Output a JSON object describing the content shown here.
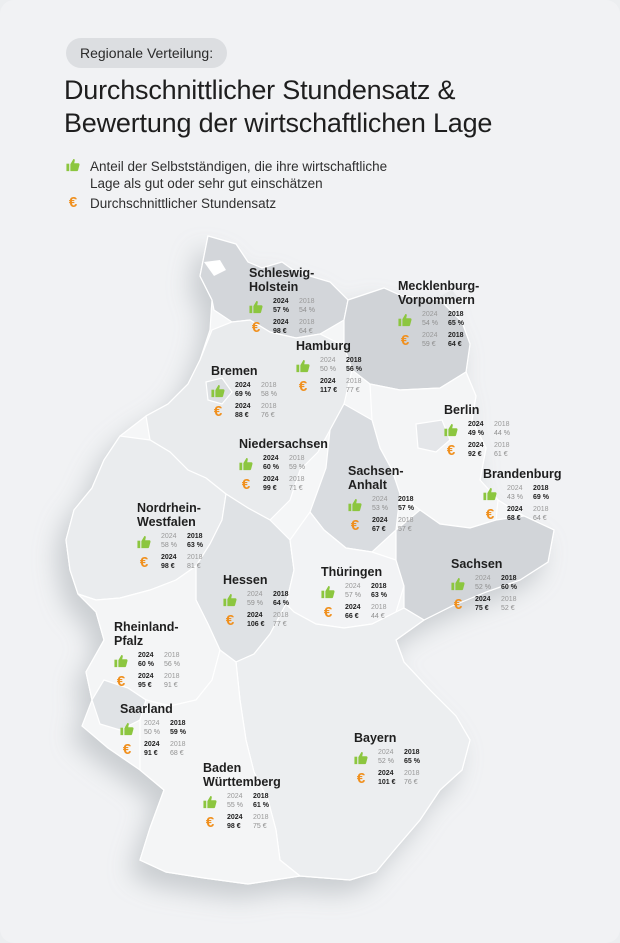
{
  "header": {
    "pill": "Regionale Verteilung:",
    "title_line1": "Durchschnittlicher Stundensatz &",
    "title_line2": "Bewertung der wirtschaftlichen Lage"
  },
  "legend": {
    "thumb_text": "Anteil der Selbstständigen, die ihre wirtschaftliche Lage als gut oder sehr gut einschätzen",
    "euro_text": "Durchschnittlicher Stundensatz",
    "euro_symbol": "€"
  },
  "colors": {
    "thumb": "#8cc63f",
    "euro": "#f0901e"
  },
  "years": {
    "a": "2024",
    "b": "2018"
  },
  "regions": {
    "sh": {
      "name": "Schleswig-Holstein",
      "name1": "Schleswig-",
      "name2": "Holstein",
      "share_2024": "57 %",
      "share_2018": "54 %",
      "rate_2024": "98 €",
      "rate_2018": "64 €",
      "share_higher": "2024",
      "rate_higher": "2024"
    },
    "mv": {
      "name1": "Mecklenburg-",
      "name2": "Vorpommern",
      "share_2024": "54 %",
      "share_2018": "65 %",
      "rate_2024": "59 €",
      "rate_2018": "64 €",
      "share_higher": "2018",
      "rate_higher": "2018"
    },
    "hh": {
      "name1": "Hamburg",
      "share_2024": "50 %",
      "share_2018": "56 %",
      "rate_2024": "117 €",
      "rate_2018": "77 €",
      "share_higher": "2018",
      "rate_higher": "2024"
    },
    "hb": {
      "name1": "Bremen",
      "share_2024": "69 %",
      "share_2018": "58 %",
      "rate_2024": "88 €",
      "rate_2018": "76 €",
      "share_higher": "2024",
      "rate_higher": "2024"
    },
    "be": {
      "name1": "Berlin",
      "share_2024": "49 %",
      "share_2018": "44 %",
      "rate_2024": "92 €",
      "rate_2018": "61 €",
      "share_higher": "2024",
      "rate_higher": "2024"
    },
    "ni": {
      "name1": "Niedersachsen",
      "share_2024": "60 %",
      "share_2018": "59 %",
      "rate_2024": "99 €",
      "rate_2018": "71 €",
      "share_higher": "2024",
      "rate_higher": "2024"
    },
    "st": {
      "name1": "Sachsen-",
      "name2": "Anhalt",
      "share_2024": "53 %",
      "share_2018": "57 %",
      "rate_2024": "67 €",
      "rate_2018": "57 €",
      "share_higher": "2018",
      "rate_higher": "2024"
    },
    "bb": {
      "name1": "Brandenburg",
      "share_2024": "43 %",
      "share_2018": "69 %",
      "rate_2024": "68 €",
      "rate_2018": "64 €",
      "share_higher": "2018",
      "rate_higher": "2024"
    },
    "nw": {
      "name1": "Nordrhein-",
      "name2": "Westfalen",
      "share_2024": "58 %",
      "share_2018": "63 %",
      "rate_2024": "98 €",
      "rate_2018": "81 €",
      "share_higher": "2018",
      "rate_higher": "2024"
    },
    "he": {
      "name1": "Hessen",
      "share_2024": "59 %",
      "share_2018": "64 %",
      "rate_2024": "106 €",
      "rate_2018": "77 €",
      "share_higher": "2018",
      "rate_higher": "2024"
    },
    "th": {
      "name1": "Thüringen",
      "share_2024": "57 %",
      "share_2018": "63 %",
      "rate_2024": "66 €",
      "rate_2018": "44 €",
      "share_higher": "2018",
      "rate_higher": "2024"
    },
    "sn": {
      "name1": "Sachsen",
      "share_2024": "52 %",
      "share_2018": "60 %",
      "rate_2024": "75 €",
      "rate_2018": "52 €",
      "share_higher": "2018",
      "rate_higher": "2024"
    },
    "rp": {
      "name1": "Rheinland-",
      "name2": "Pfalz",
      "share_2024": "60 %",
      "share_2018": "56 %",
      "rate_2024": "95 €",
      "rate_2018": "91 €",
      "share_higher": "2024",
      "rate_higher": "2024"
    },
    "sl": {
      "name1": "Saarland",
      "share_2024": "50 %",
      "share_2018": "59 %",
      "rate_2024": "91 €",
      "rate_2018": "68 €",
      "share_higher": "2018",
      "rate_higher": "2024"
    },
    "by": {
      "name1": "Bayern",
      "share_2024": "52 %",
      "share_2018": "65 %",
      "rate_2024": "101 €",
      "rate_2018": "76 €",
      "share_higher": "2018",
      "rate_higher": "2024"
    },
    "bw": {
      "name1": "Baden",
      "name2": "Württemberg",
      "share_2024": "55 %",
      "share_2018": "61 %",
      "rate_2024": "98 €",
      "rate_2018": "75 €",
      "share_higher": "2018",
      "rate_higher": "2024"
    }
  }
}
